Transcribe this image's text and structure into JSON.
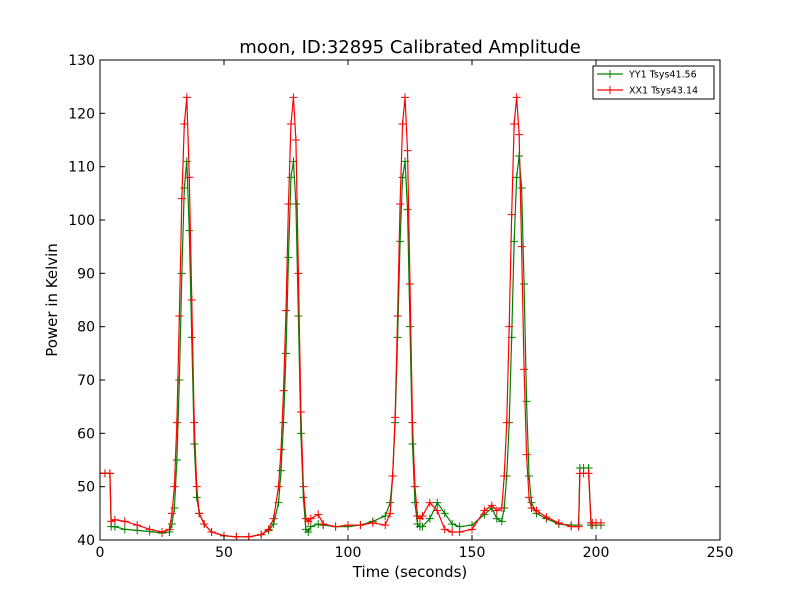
{
  "chart_data": {
    "type": "line",
    "title": "moon, ID:32895 Calibrated Amplitude",
    "xlabel": "Time (seconds)",
    "ylabel": "Power in Kelvin",
    "xlim": [
      0,
      250
    ],
    "ylim": [
      40,
      130
    ],
    "xticks": [
      "0",
      "50",
      "100",
      "150",
      "200",
      "250"
    ],
    "yticks": [
      "40",
      "50",
      "60",
      "70",
      "80",
      "90",
      "100",
      "110",
      "120",
      "130"
    ],
    "grid": false,
    "legend_position": "top-right",
    "marker": "+",
    "series": [
      {
        "name": "YY1 Tsys41.56",
        "color": "#008000",
        "x": [
          0,
          2,
          4,
          4.5,
          6,
          10,
          15,
          20,
          25,
          28,
          29,
          30,
          31,
          32,
          33,
          34,
          35,
          36,
          37,
          38,
          39,
          40,
          42,
          45,
          50,
          55,
          60,
          65,
          68,
          70,
          72,
          73,
          74,
          75,
          76,
          77,
          78,
          79,
          80,
          81,
          82,
          83,
          84,
          85,
          88,
          90,
          95,
          100,
          105,
          110,
          115,
          117,
          118,
          119,
          120,
          121,
          122,
          123,
          124,
          125,
          126,
          127,
          128,
          129,
          130,
          133,
          136,
          139,
          142,
          145,
          150,
          155,
          158,
          160,
          162,
          163,
          164,
          165,
          166,
          167,
          168,
          169,
          170,
          171,
          172,
          173,
          174,
          176,
          180,
          185,
          190,
          193,
          193.5,
          195,
          197,
          198,
          198.5,
          200,
          202
        ],
        "y": [
          52.5,
          52.5,
          52.5,
          42.5,
          42.5,
          42,
          41.8,
          41.6,
          41.3,
          41.5,
          43,
          46,
          55,
          70,
          90,
          106,
          111,
          98,
          78,
          58,
          48,
          45,
          43,
          41.5,
          40.8,
          40.6,
          40.6,
          41,
          41.8,
          43,
          47,
          53,
          62,
          75,
          93,
          108,
          111,
          103,
          82,
          60,
          48,
          42,
          41.5,
          42.5,
          43,
          42.8,
          42.5,
          42.5,
          42.8,
          43.5,
          44.5,
          47,
          52,
          62,
          78,
          96,
          108,
          111,
          102,
          80,
          58,
          47,
          43,
          42.5,
          42.5,
          44,
          47,
          45,
          43,
          42.5,
          42.8,
          44.8,
          46,
          44,
          43.5,
          46,
          52,
          62,
          78,
          96,
          108,
          112,
          106,
          88,
          66,
          52,
          47,
          45,
          44,
          43,
          42.8,
          42.8,
          53.5,
          53.5,
          53.5,
          42.8,
          42.8,
          42.8,
          42.8
        ]
      },
      {
        "name": "XX1 Tsys43.14",
        "color": "#ff0000",
        "x": [
          0,
          2,
          4,
          4.5,
          6,
          10,
          15,
          20,
          25,
          28,
          29,
          30,
          31,
          32,
          33,
          34,
          35,
          36,
          37,
          38,
          39,
          40,
          42,
          45,
          50,
          55,
          60,
          65,
          68,
          70,
          72,
          73,
          74,
          75,
          76,
          77,
          78,
          79,
          80,
          81,
          82,
          83,
          84,
          85,
          88,
          90,
          95,
          100,
          105,
          110,
          115,
          117,
          118,
          119,
          120,
          121,
          122,
          123,
          124,
          125,
          126,
          127,
          128,
          129,
          130,
          133,
          136,
          139,
          142,
          145,
          150,
          155,
          158,
          160,
          162,
          163,
          164,
          165,
          166,
          167,
          168,
          169,
          170,
          171,
          172,
          173,
          174,
          176,
          180,
          185,
          190,
          193,
          193.5,
          195,
          197,
          198,
          198.5,
          200,
          202
        ],
        "y": [
          52.5,
          52.5,
          52.5,
          43.5,
          43.8,
          43.5,
          42.8,
          42,
          41.5,
          42,
          45,
          50,
          62,
          82,
          104,
          118,
          123,
          108,
          85,
          62,
          50,
          45,
          43,
          41.5,
          40.8,
          40.6,
          40.6,
          41,
          42,
          44,
          50,
          57,
          68,
          83,
          103,
          118,
          123,
          115,
          90,
          64,
          50,
          44,
          43.5,
          44,
          44.8,
          43,
          42.5,
          42.8,
          42.8,
          43.2,
          42.8,
          45,
          52,
          63,
          82,
          103,
          118,
          123,
          113,
          88,
          62,
          50,
          44.5,
          44,
          44.5,
          47,
          45.5,
          42,
          41.5,
          41.5,
          42,
          45.5,
          46.5,
          45.5,
          46,
          52,
          62,
          80,
          101,
          118,
          123,
          116,
          95,
          72,
          56,
          48,
          46,
          45.5,
          44.3,
          43.2,
          42.5,
          42.5,
          52.5,
          52.5,
          52.5,
          43.2,
          43.2,
          43.2,
          43.2
        ]
      }
    ]
  }
}
